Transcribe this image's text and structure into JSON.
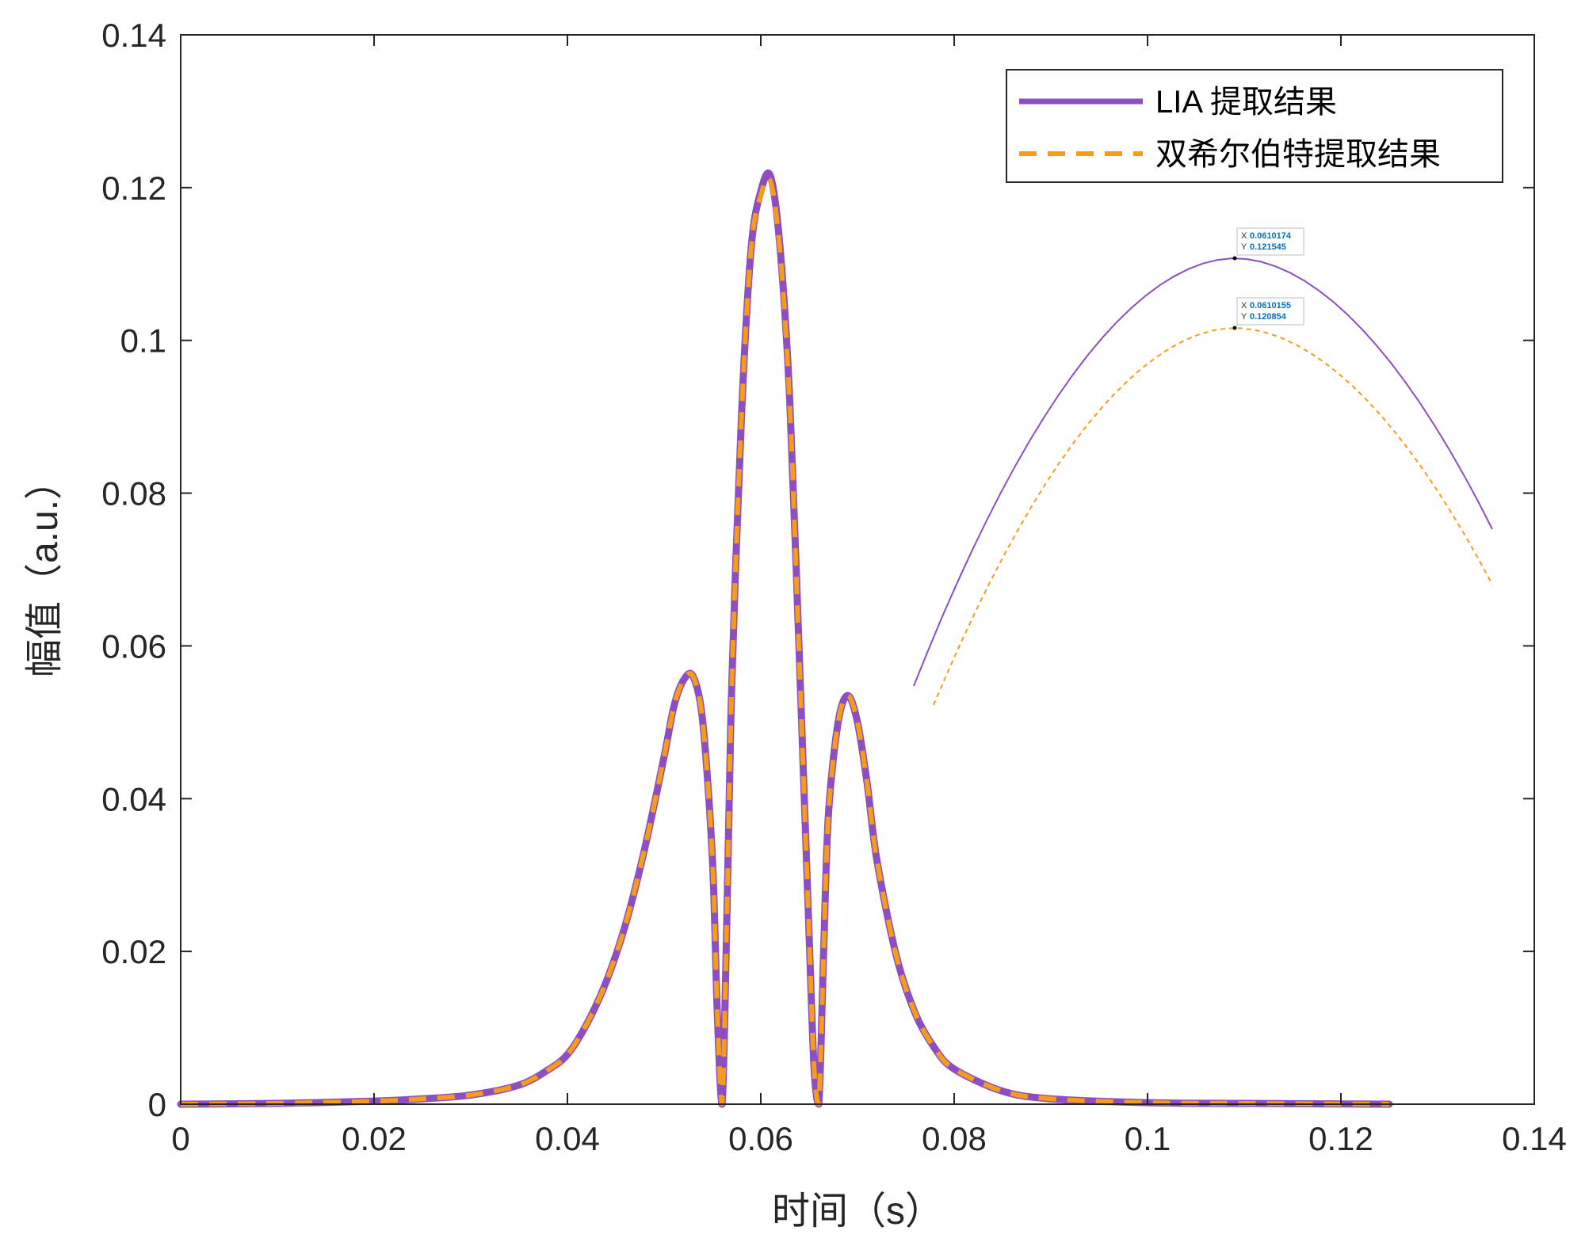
{
  "chart_data": {
    "type": "line",
    "xlabel": "时间（s）",
    "ylabel": "幅值（a.u.）",
    "xlim": [
      0,
      0.14
    ],
    "ylim": [
      0,
      0.14
    ],
    "xticks": [
      0,
      0.02,
      0.04,
      0.06,
      0.08,
      0.1,
      0.12,
      0.14
    ],
    "xtick_labels": [
      "0",
      "0.02",
      "0.04",
      "0.06",
      "0.08",
      "0.1",
      "0.12",
      "0.14"
    ],
    "yticks": [
      0,
      0.02,
      0.04,
      0.06,
      0.08,
      0.1,
      0.12,
      0.14
    ],
    "ytick_labels": [
      "0",
      "0.02",
      "0.04",
      "0.06",
      "0.08",
      "0.1",
      "0.12",
      "0.14"
    ],
    "grid": false,
    "legend_position": "top-right",
    "series": [
      {
        "name": "LIA 提取结果",
        "color": "#8b4fc1",
        "line_style": "solid",
        "x": [
          0,
          0.01,
          0.02,
          0.025,
          0.03,
          0.035,
          0.038,
          0.04,
          0.042,
          0.044,
          0.046,
          0.048,
          0.05,
          0.051,
          0.052,
          0.053,
          0.054,
          0.055,
          0.0555,
          0.056,
          0.0565,
          0.057,
          0.058,
          0.059,
          0.06,
          0.061,
          0.062,
          0.063,
          0.064,
          0.065,
          0.0655,
          0.066,
          0.0665,
          0.067,
          0.068,
          0.069,
          0.07,
          0.071,
          0.072,
          0.074,
          0.076,
          0.078,
          0.08,
          0.085,
          0.09,
          0.1,
          0.11,
          0.125
        ],
        "y": [
          0,
          0.0001,
          0.0004,
          0.0007,
          0.0012,
          0.0025,
          0.0045,
          0.0065,
          0.0105,
          0.016,
          0.0235,
          0.0335,
          0.0455,
          0.052,
          0.0555,
          0.056,
          0.05,
          0.032,
          0.012,
          0,
          0.025,
          0.055,
          0.09,
          0.112,
          0.1195,
          0.1215,
          0.112,
          0.092,
          0.058,
          0.022,
          0.005,
          0,
          0.02,
          0.038,
          0.05,
          0.0535,
          0.05,
          0.042,
          0.032,
          0.0195,
          0.0118,
          0.0073,
          0.0046,
          0.0017,
          0.0007,
          0.0002,
          0.0001,
          0
        ]
      },
      {
        "name": "双希尔伯特提取结果",
        "color": "#f59c1a",
        "line_style": "dashed",
        "x": [
          0,
          0.01,
          0.02,
          0.025,
          0.03,
          0.035,
          0.038,
          0.04,
          0.042,
          0.044,
          0.046,
          0.048,
          0.05,
          0.051,
          0.052,
          0.053,
          0.054,
          0.055,
          0.0555,
          0.056,
          0.0565,
          0.057,
          0.058,
          0.059,
          0.06,
          0.061,
          0.062,
          0.063,
          0.064,
          0.065,
          0.0655,
          0.066,
          0.0665,
          0.067,
          0.068,
          0.069,
          0.07,
          0.071,
          0.072,
          0.074,
          0.076,
          0.078,
          0.08,
          0.085,
          0.09,
          0.1,
          0.11,
          0.125
        ],
        "y": [
          0,
          0.0001,
          0.0004,
          0.0007,
          0.0012,
          0.0025,
          0.0045,
          0.0065,
          0.0105,
          0.016,
          0.0235,
          0.0335,
          0.0455,
          0.052,
          0.0555,
          0.056,
          0.05,
          0.032,
          0.012,
          0,
          0.025,
          0.055,
          0.09,
          0.112,
          0.119,
          0.120854,
          0.1115,
          0.0915,
          0.0575,
          0.022,
          0.005,
          0,
          0.02,
          0.038,
          0.05,
          0.0535,
          0.05,
          0.042,
          0.032,
          0.0195,
          0.0118,
          0.0073,
          0.0046,
          0.0017,
          0.0007,
          0.0002,
          0.0001,
          0
        ]
      }
    ],
    "inset": {
      "description_series": [
        "LIA 提取结果",
        "双希尔伯特提取结果"
      ],
      "datatips": [
        {
          "series": "LIA 提取结果",
          "x_label": "X",
          "x": "0.0610174",
          "y_label": "Y",
          "y": "0.121545"
        },
        {
          "series": "双希尔伯特提取结果",
          "x_label": "X",
          "x": "0.0610155",
          "y_label": "Y",
          "y": "0.120854"
        }
      ]
    },
    "colors": {
      "axis": "#262626",
      "lia": "#8b4fc1",
      "hilbert": "#f59c1a",
      "datatip_value": "#0072bd"
    }
  }
}
